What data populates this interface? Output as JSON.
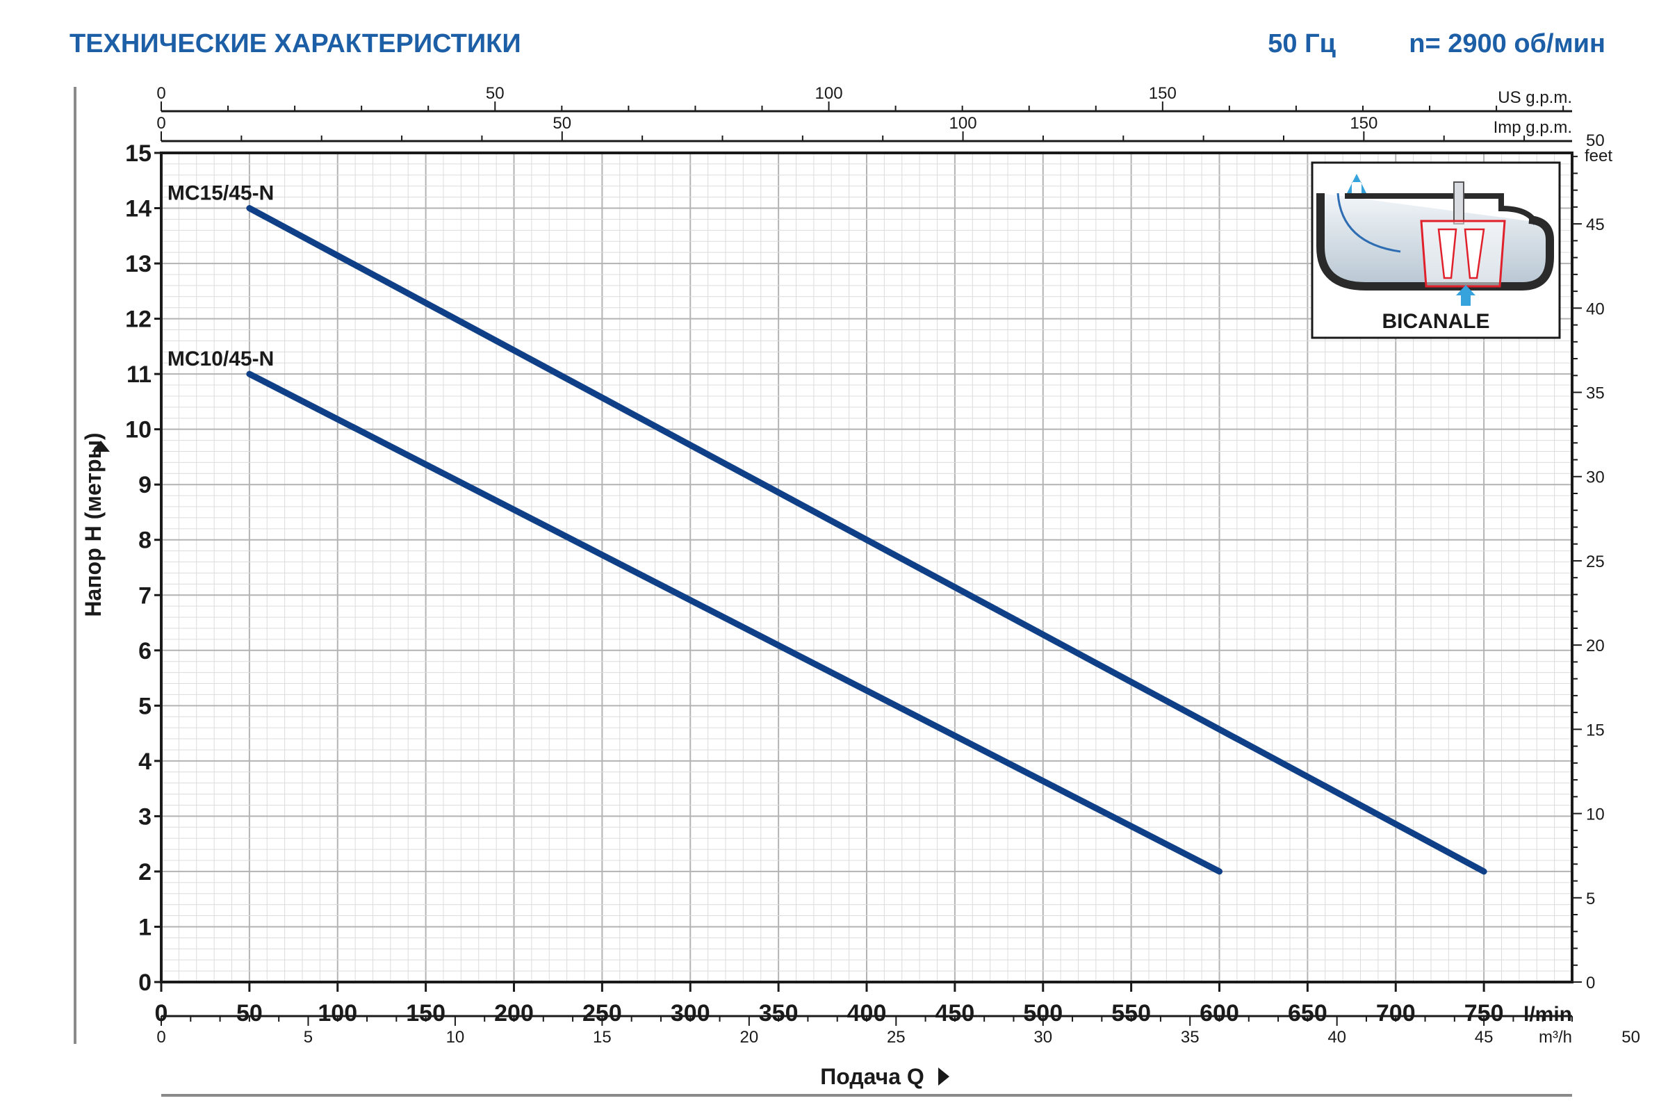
{
  "header": {
    "title": "ТЕХНИЧЕСКИЕ ХАРАКТЕРИСТИКИ",
    "frequency": "50 Гц",
    "speed": "n= 2900 об/мин"
  },
  "colors": {
    "header": "#1d5fa6",
    "curve": "#0f3f86",
    "grid_major": "#b3b3b3",
    "grid_minor": "#dcdcdc",
    "frame": "#1a1a1a",
    "inset_accent": "#e0202a",
    "inset_arrow": "#36a3dd"
  },
  "chart_data": {
    "type": "line",
    "xlabel": "Подача Q",
    "ylabel": "Напор H  (метры)",
    "xlim": [
      0,
      800
    ],
    "ylim": [
      0,
      15
    ],
    "grid": true,
    "x_unit": "l/min",
    "x_ticks": [
      0,
      50,
      100,
      150,
      200,
      250,
      300,
      350,
      400,
      450,
      500,
      550,
      600,
      650,
      700,
      750
    ],
    "y_ticks": [
      0,
      1,
      2,
      3,
      4,
      5,
      6,
      7,
      8,
      9,
      10,
      11,
      12,
      13,
      14,
      15
    ],
    "series": [
      {
        "name": "MC15/45-N",
        "x": [
          50,
          750
        ],
        "y": [
          14,
          2
        ]
      },
      {
        "name": "MC10/45-N",
        "x": [
          50,
          600
        ],
        "y": [
          11,
          2
        ]
      }
    ],
    "secondary_axes": {
      "us_gpm": {
        "unit": "US g.p.m.",
        "ticks": [
          0,
          50,
          100,
          150
        ]
      },
      "imp_gpm": {
        "unit": "Imp g.p.m.",
        "ticks": [
          0,
          50,
          100,
          150
        ]
      },
      "m3h": {
        "unit": "m³/h",
        "ticks": [
          0,
          5,
          10,
          15,
          20,
          25,
          30,
          35,
          40,
          45,
          50
        ]
      },
      "feet": {
        "unit": "feet",
        "ticks": [
          0,
          5,
          10,
          15,
          20,
          25,
          30,
          35,
          40,
          45,
          50
        ]
      }
    }
  },
  "inset": {
    "label": "BICANALE",
    "icon": "bicanale-impeller-diagram"
  }
}
